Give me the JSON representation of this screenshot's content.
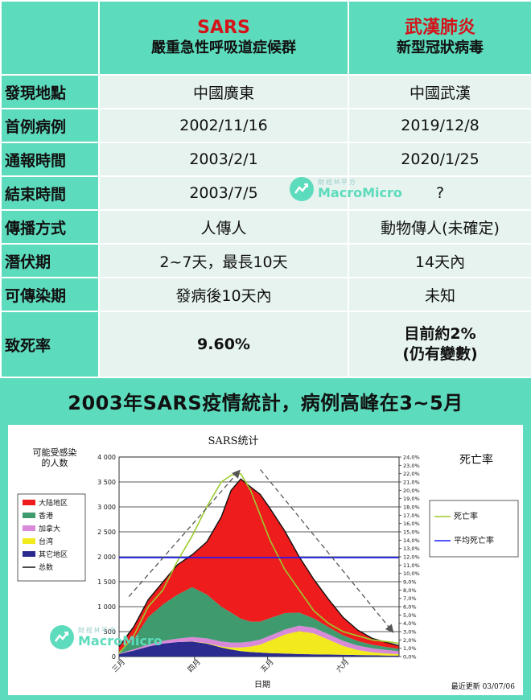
{
  "comparison": {
    "col1_title": "SARS",
    "col1_subtitle": "嚴重急性呼吸道症候群",
    "col2_title": "武漢肺炎",
    "col2_subtitle": "新型冠狀病毒",
    "rows": [
      {
        "label": "發現地點",
        "a": "中國廣東",
        "b": "中國武漢"
      },
      {
        "label": "首例病例",
        "a": "2002/11/16",
        "b": "2019/12/8"
      },
      {
        "label": "通報時間",
        "a": "2003/2/1",
        "b": "2020/1/25"
      },
      {
        "label": "結束時間",
        "a": "2003/7/5",
        "b": "?"
      },
      {
        "label": "傳播方式",
        "a": "人傳人",
        "b": "動物傳人(未確定)"
      },
      {
        "label": "潛伏期",
        "a": "2~7天，最長10天",
        "b": "14天內"
      },
      {
        "label": "可傳染期",
        "a": "發病後10天內",
        "b": "未知"
      },
      {
        "label": "致死率",
        "a": "9.60%",
        "b_line1": "目前約2%",
        "b_line2": "(仍有變數)"
      }
    ]
  },
  "watermark": {
    "cn": "財經M平方",
    "en": "MacroMicro"
  },
  "section_title": "2003年SARS疫情統計，病例高峰在3~5月",
  "colors": {
    "teal": "#5ddbbd",
    "cell": "#e6f3ee",
    "red": "#d4141a"
  },
  "chart_data": {
    "type": "area",
    "title": "SARS统计",
    "ylabel": "可能受感染的人数",
    "ylabel_right": "死亡率",
    "xlabel": "日期",
    "updated": "最近更新 03/07/06",
    "ylim": [
      0,
      4000
    ],
    "y_ticks": [
      "0",
      "500",
      "1 000",
      "1 500",
      "2 000",
      "2 500",
      "3 000",
      "3 500",
      "4 000"
    ],
    "y2lim": [
      0,
      24
    ],
    "y2_ticks": [
      "0,0%",
      "1,0%",
      "2,0%",
      "3,0%",
      "4,0%",
      "5,0%",
      "6,0%",
      "7,0%",
      "8,0%",
      "9,0%",
      "10,0%",
      "11,0%",
      "12,0%",
      "13,0%",
      "14,0%",
      "15,0%",
      "16,0%",
      "17,0%",
      "18,0%",
      "19,0%",
      "20,0%",
      "21,0%",
      "22,0%",
      "23,0%",
      "24,0%"
    ],
    "x_ticks": [
      {
        "label": "三月",
        "x": 0
      },
      {
        "label": "四月",
        "x": 31
      },
      {
        "label": "五月",
        "x": 61
      },
      {
        "label": "六月",
        "x": 92
      }
    ],
    "x_range": [
      0,
      115
    ],
    "x": [
      0,
      6,
      12,
      18,
      24,
      30,
      36,
      42,
      46,
      50,
      54,
      58,
      62,
      68,
      74,
      80,
      86,
      92,
      98,
      104,
      110,
      115
    ],
    "series": [
      {
        "name": "其它地区",
        "color": "#2b2b8f",
        "values": [
          50,
          120,
          200,
          260,
          290,
          300,
          260,
          180,
          140,
          110,
          90,
          80,
          70,
          60,
          50,
          45,
          40,
          35,
          30,
          25,
          20,
          18
        ]
      },
      {
        "name": "台湾",
        "color": "#f2ea1d",
        "values": [
          0,
          0,
          0,
          0,
          0,
          5,
          10,
          20,
          40,
          70,
          110,
          160,
          250,
          380,
          460,
          420,
          300,
          180,
          100,
          60,
          40,
          30
        ]
      },
      {
        "name": "加拿大",
        "color": "#d88ad8",
        "values": [
          10,
          25,
          40,
          55,
          70,
          85,
          95,
          100,
          100,
          100,
          100,
          100,
          100,
          100,
          110,
          110,
          110,
          100,
          90,
          80,
          70,
          60
        ]
      },
      {
        "name": "香港",
        "color": "#3f9a6e",
        "values": [
          40,
          200,
          550,
          730,
          880,
          1000,
          880,
          700,
          600,
          480,
          400,
          360,
          350,
          330,
          260,
          190,
          140,
          110,
          90,
          70,
          60,
          50
        ]
      },
      {
        "name": "大陆地区",
        "color": "#ee1c1c",
        "values": [
          100,
          250,
          350,
          450,
          600,
          650,
          1050,
          1800,
          2450,
          2800,
          2700,
          2550,
          2200,
          1650,
          1120,
          780,
          560,
          360,
          220,
          130,
          90,
          60
        ]
      }
    ],
    "total": {
      "name": "总数",
      "color": "#111111",
      "values": [
        200,
        595,
        1140,
        1495,
        1840,
        2040,
        2295,
        2800,
        3330,
        3560,
        3400,
        3250,
        2970,
        2520,
        2000,
        1545,
        1150,
        785,
        530,
        365,
        280,
        218
      ]
    },
    "death_rate": {
      "name": "死亡率",
      "color": "#9ccc2e",
      "values": [
        0.4,
        2.5,
        6.0,
        8.0,
        11.5,
        14.5,
        18.0,
        21.0,
        21.8,
        22.0,
        20.0,
        17.0,
        14.0,
        10.5,
        8.0,
        5.5,
        4.0,
        3.0,
        2.5,
        2.0,
        1.8,
        1.6
      ]
    },
    "avg_death_rate": {
      "name": "平均死亡率",
      "color": "#1a1aff",
      "value": 11.9
    },
    "legend_position": "left",
    "legend_right_position": "right"
  }
}
